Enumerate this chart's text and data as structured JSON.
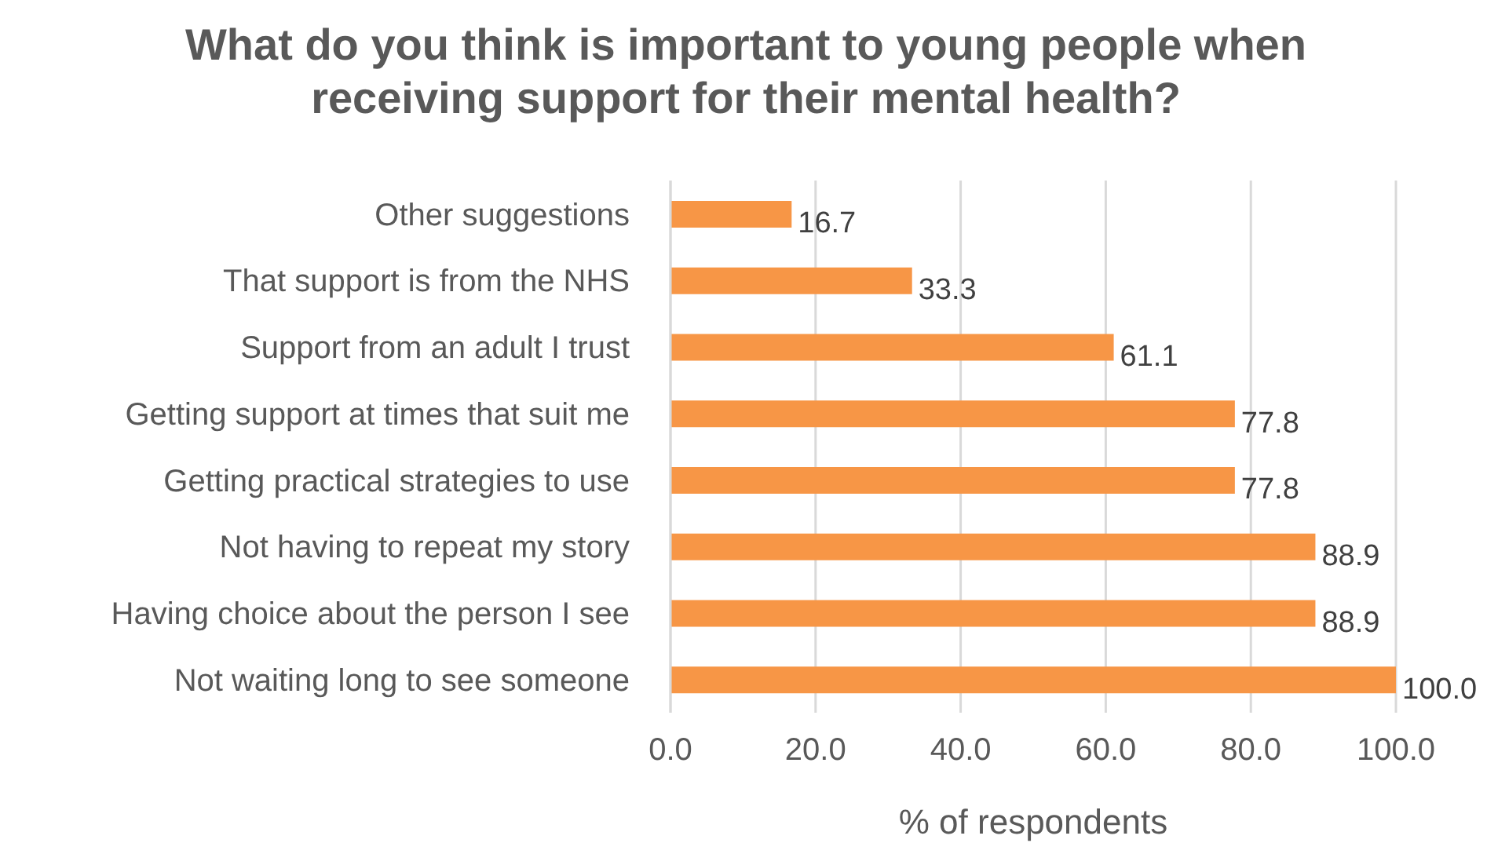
{
  "chart_data": {
    "type": "bar",
    "orientation": "horizontal",
    "title": "What do you think is important to young people when receiving support for their mental health?",
    "xlabel": "% of respondents",
    "categories": [
      "Other suggestions",
      "That support is from the NHS",
      "Support from an adult I trust",
      "Getting support at times that suit me",
      "Getting practical strategies to use",
      "Not having to repeat my story",
      "Having choice about the person I see",
      "Not waiting long to see someone"
    ],
    "values": [
      16.7,
      33.3,
      61.1,
      77.8,
      77.8,
      88.9,
      88.9,
      100.0
    ],
    "value_labels": [
      "16.7",
      "33.3",
      "61.1",
      "77.8",
      "77.8",
      "88.9",
      "88.9",
      "100.0"
    ],
    "color": "#f79646",
    "xlim": [
      0,
      100
    ],
    "xticks": [
      {
        "value": 0,
        "label": "0.0"
      },
      {
        "value": 20,
        "label": "20.0"
      },
      {
        "value": 40,
        "label": "40.0"
      },
      {
        "value": 60,
        "label": "60.0"
      },
      {
        "value": 80,
        "label": "80.0"
      },
      {
        "value": 100,
        "label": "100.0"
      }
    ],
    "grid": "x"
  }
}
